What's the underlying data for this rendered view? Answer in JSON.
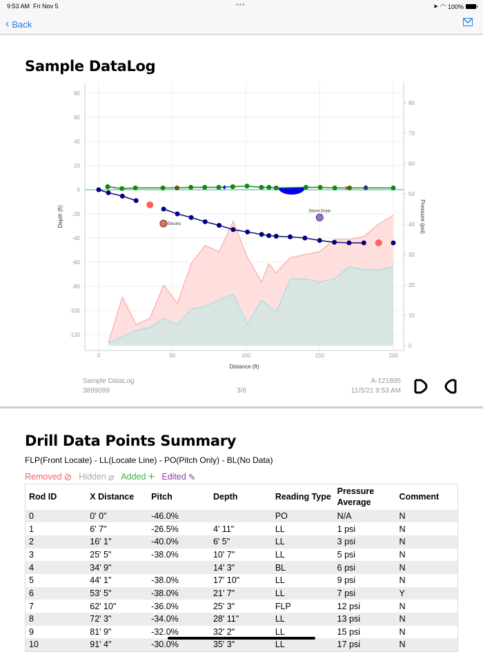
{
  "status_bar": {
    "time": "9:53 AM",
    "date": "Fri Nov 5",
    "battery": "100%"
  },
  "nav": {
    "back_label": "Back",
    "mail_icon": "envelope-icon"
  },
  "page1": {
    "title": "Sample DataLog",
    "footer": {
      "name": "Sample DataLog",
      "id": "3899099",
      "page": "3/6",
      "serial": "A-121895",
      "datetime": "11/5/21 9:53 AM",
      "logo": "DCI"
    }
  },
  "chart_data": {
    "type": "line",
    "xlabel": "Distance (ft)",
    "ylabel": "Depth (ft)",
    "y2label": "Pressure (psi)",
    "xlim": [
      -10,
      207
    ],
    "ylim": [
      -130,
      88
    ],
    "y2lim": [
      0,
      82
    ],
    "xticks": [
      0,
      50,
      100,
      150,
      200
    ],
    "yticks": [
      80,
      60,
      40,
      20,
      0,
      -20,
      -40,
      -60,
      -80,
      -100,
      -120
    ],
    "y2ticks": [
      80,
      70,
      60,
      50,
      40,
      30,
      20,
      10,
      0
    ],
    "grid": true,
    "drill_path": {
      "x": [
        0,
        6.6,
        16.1,
        25.4,
        44.1,
        53.4,
        62.8,
        72.25,
        81.75,
        91.3,
        101,
        110.6,
        115.5,
        120.5,
        130,
        140,
        150,
        160,
        170,
        180,
        200
      ],
      "depth": [
        0,
        -2.5,
        -5.3,
        -9,
        -16,
        -20,
        -23,
        -26.5,
        -29.5,
        -33,
        -35,
        -37,
        -38,
        -38.5,
        -39,
        -40,
        -42,
        -43.5,
        -44,
        -44,
        -44
      ]
    },
    "no_data_points": {
      "x": [
        34.75,
        190
      ],
      "depth": [
        -12.5,
        -44
      ]
    },
    "surface": {
      "x": [
        6.1,
        15.8,
        24.9,
        43.6,
        53.2,
        62.6,
        72,
        81.5,
        91,
        100.7,
        110.5,
        115.6,
        120.5,
        140.7,
        150.4,
        160.3,
        170.3,
        181.3,
        200
      ],
      "elevation": [
        2.5,
        1,
        1.5,
        1.5,
        1.5,
        2,
        2,
        2,
        2.5,
        3,
        2,
        2,
        1.5,
        2,
        2,
        1.5,
        1.5,
        1.5,
        1.5
      ]
    },
    "removed_marks_x": [
      53.2,
      168.8,
      181.3
    ],
    "added_marks_x": [
      85.4,
      181.3
    ],
    "water_crossing": {
      "from": 122,
      "to": 140
    },
    "utilities": [
      {
        "label": "Electric",
        "x": 44,
        "depth": -28,
        "color": "#ff6060"
      },
      {
        "label": "Storm Drain",
        "x": 150,
        "depth": -23,
        "color": "#a366ee"
      }
    ],
    "pressure_x": [
      6.6,
      16.1,
      25.4,
      34.75,
      44.1,
      53.4,
      62.8,
      72.25,
      81.75,
      91.3,
      101,
      110.6,
      115.5,
      120.5,
      130,
      140,
      150,
      160,
      170,
      180,
      190,
      200
    ],
    "series": [
      {
        "values": [
          1,
          16,
          7,
          9,
          20,
          14,
          27,
          33,
          31,
          41,
          29,
          21,
          27,
          24,
          29,
          30,
          31,
          35,
          35,
          36,
          40,
          43
        ],
        "color": "#ff9a9a"
      },
      {
        "values": [
          1,
          3,
          5,
          6,
          9,
          7,
          12,
          13,
          15,
          17,
          7,
          15,
          13,
          11,
          22,
          22,
          21,
          22,
          26,
          25,
          25,
          26
        ],
        "color": "#8fdede"
      }
    ]
  },
  "page2": {
    "title": "Drill Data Points Summary",
    "legend": "FLP(Front Locate) - LL(Locate Line) - PO(Pitch Only) - BL(No Data)",
    "marks": {
      "removed": "Removed",
      "hidden": "Hidden",
      "added": "Added",
      "edited": "Edited"
    },
    "columns": [
      "Rod ID",
      "X Distance",
      "Pitch",
      "Depth",
      "Reading Type",
      "Pressure Average",
      "Comment"
    ],
    "rows": [
      [
        "0",
        "0' 0\"",
        "-46.0%",
        "",
        "PO",
        "N/A",
        "N"
      ],
      [
        "1",
        "6' 7\"",
        "-26.5%",
        "4' 11\"",
        "LL",
        "1 psi",
        "N"
      ],
      [
        "2",
        "16' 1\"",
        "-40.0%",
        "6' 5\"",
        "LL",
        "3 psi",
        "N"
      ],
      [
        "3",
        "25' 5\"",
        "-38.0%",
        "10' 7\"",
        "LL",
        "5 psi",
        "N"
      ],
      [
        "4",
        "34' 9\"",
        "",
        "14' 3\"",
        "BL",
        "6 psi",
        "N"
      ],
      [
        "5",
        "44' 1\"",
        "-38.0%",
        "17' 10\"",
        "LL",
        "9 psi",
        "N"
      ],
      [
        "6",
        "53' 5\"",
        "-38.0%",
        "21' 7\"",
        "LL",
        "7 psi",
        "Y"
      ],
      [
        "7",
        "62' 10\"",
        "-36.0%",
        "25' 3\"",
        "FLP",
        "12 psi",
        "N"
      ],
      [
        "8",
        "72' 3\"",
        "-34.0%",
        "28' 11\"",
        "LL",
        "13 psi",
        "N"
      ],
      [
        "9",
        "81' 9\"",
        "-32.0%",
        "32' 2\"",
        "LL",
        "15 psi",
        "N"
      ],
      [
        "10",
        "91' 4\"",
        "-30.0%",
        "35' 3\"",
        "LL",
        "17 psi",
        "N"
      ]
    ]
  }
}
